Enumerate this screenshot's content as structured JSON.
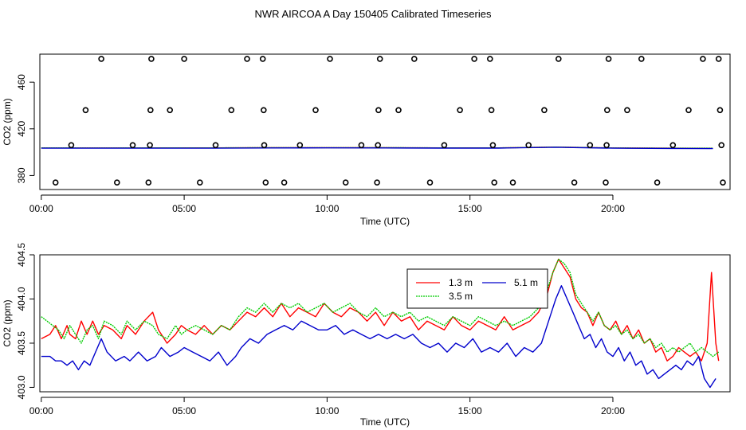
{
  "title": "NWR AIRCOA A  Day 150405  Calibrated Timeseries",
  "chart_data": [
    {
      "type": "scatter",
      "xlabel": "Time (UTC)",
      "ylabel": "CO2 (ppm)",
      "xlim": [
        -0.05,
        24.1
      ],
      "ylim": [
        368,
        484
      ],
      "xticks": [
        0,
        5,
        10,
        15,
        20
      ],
      "xtick_labels": [
        "00:00",
        "05:00",
        "10:00",
        "15:00",
        "20:00"
      ],
      "yticks": [
        380,
        420,
        460
      ],
      "ytick_labels": [
        "380",
        "420",
        "460"
      ],
      "grid": false,
      "points": [
        [
          0.5,
          374
        ],
        [
          1.05,
          406
        ],
        [
          1.55,
          436
        ],
        [
          2.1,
          480
        ],
        [
          2.65,
          374
        ],
        [
          3.2,
          406
        ],
        [
          3.75,
          374
        ],
        [
          3.8,
          406
        ],
        [
          3.82,
          436
        ],
        [
          3.85,
          480
        ],
        [
          4.5,
          436
        ],
        [
          5.0,
          480
        ],
        [
          5.55,
          374
        ],
        [
          6.1,
          406
        ],
        [
          6.65,
          436
        ],
        [
          7.2,
          480
        ],
        [
          7.75,
          480
        ],
        [
          7.78,
          436
        ],
        [
          7.8,
          406
        ],
        [
          7.85,
          374
        ],
        [
          8.5,
          374
        ],
        [
          9.05,
          406
        ],
        [
          9.6,
          436
        ],
        [
          10.1,
          480
        ],
        [
          10.65,
          374
        ],
        [
          11.2,
          406
        ],
        [
          11.75,
          374
        ],
        [
          11.78,
          406
        ],
        [
          11.8,
          436
        ],
        [
          11.85,
          480
        ],
        [
          12.5,
          436
        ],
        [
          13.05,
          480
        ],
        [
          13.6,
          374
        ],
        [
          14.1,
          406
        ],
        [
          14.65,
          436
        ],
        [
          15.15,
          480
        ],
        [
          15.7,
          480
        ],
        [
          15.75,
          436
        ],
        [
          15.8,
          406
        ],
        [
          15.85,
          374
        ],
        [
          16.5,
          374
        ],
        [
          17.05,
          406
        ],
        [
          17.6,
          436
        ],
        [
          18.1,
          480
        ],
        [
          18.65,
          374
        ],
        [
          19.2,
          406
        ],
        [
          19.75,
          374
        ],
        [
          19.78,
          406
        ],
        [
          19.8,
          436
        ],
        [
          19.85,
          480
        ],
        [
          20.5,
          436
        ],
        [
          21.0,
          480
        ],
        [
          21.55,
          374
        ],
        [
          22.1,
          406
        ],
        [
          22.65,
          436
        ],
        [
          23.15,
          480
        ],
        [
          23.7,
          480
        ],
        [
          23.75,
          436
        ],
        [
          23.8,
          406
        ],
        [
          23.85,
          374
        ]
      ],
      "series": [
        {
          "name": "1.3 m",
          "color": "#ff0000",
          "x": [
            0.0,
            2.0,
            4.0,
            6.0,
            8.0,
            10.0,
            12.0,
            14.0,
            16.0,
            18.0,
            20.0,
            22.0,
            23.5
          ],
          "values": [
            403.6,
            403.6,
            403.7,
            403.7,
            403.8,
            403.9,
            403.8,
            403.7,
            403.7,
            404.4,
            403.6,
            403.4,
            403.3
          ]
        },
        {
          "name": "3.5 m",
          "color": "#00cc00",
          "x": [
            0.0,
            2.0,
            4.0,
            6.0,
            8.0,
            10.0,
            12.0,
            14.0,
            16.0,
            18.0,
            20.0,
            22.0,
            23.5
          ],
          "values": [
            403.7,
            403.6,
            403.7,
            403.7,
            403.9,
            403.9,
            403.9,
            403.7,
            403.7,
            404.4,
            403.6,
            403.4,
            403.4
          ]
        },
        {
          "name": "5.1 m",
          "color": "#0000cc",
          "x": [
            0.0,
            2.0,
            4.0,
            6.0,
            8.0,
            10.0,
            12.0,
            14.0,
            16.0,
            18.0,
            20.0,
            22.0,
            23.5
          ],
          "values": [
            403.4,
            403.4,
            403.4,
            403.4,
            403.6,
            403.7,
            403.6,
            403.5,
            403.5,
            404.2,
            403.4,
            403.2,
            403.1
          ]
        }
      ]
    },
    {
      "type": "line",
      "xlabel": "Time (UTC)",
      "ylabel": "CO2 (ppm)",
      "xlim": [
        -0.05,
        24.1
      ],
      "ylim": [
        402.95,
        404.5
      ],
      "xticks": [
        0,
        5,
        10,
        15,
        20
      ],
      "xtick_labels": [
        "00:00",
        "05:00",
        "10:00",
        "15:00",
        "20:00"
      ],
      "yticks": [
        403.0,
        403.5,
        404.0,
        404.5
      ],
      "ytick_labels": [
        "403.0",
        "403.5",
        "404.0",
        "404.5"
      ],
      "grid": false,
      "legend": {
        "placement": "top-center",
        "entries": [
          "1.3 m",
          "5.1 m",
          "3.5 m"
        ]
      },
      "series": [
        {
          "name": "1.3 m",
          "color": "#ff0000",
          "x": [
            0.0,
            0.3,
            0.5,
            0.7,
            0.9,
            1.0,
            1.2,
            1.4,
            1.6,
            1.8,
            2.0,
            2.2,
            2.5,
            2.8,
            3.0,
            3.3,
            3.6,
            3.9,
            4.1,
            4.4,
            4.7,
            4.9,
            5.1,
            5.4,
            5.7,
            6.0,
            6.3,
            6.6,
            6.9,
            7.2,
            7.5,
            7.8,
            8.1,
            8.4,
            8.7,
            9.0,
            9.3,
            9.6,
            9.9,
            10.2,
            10.5,
            10.8,
            11.1,
            11.4,
            11.7,
            12.0,
            12.3,
            12.6,
            12.9,
            13.2,
            13.5,
            13.8,
            14.1,
            14.4,
            14.7,
            15.0,
            15.3,
            15.6,
            15.9,
            16.2,
            16.5,
            16.8,
            17.1,
            17.4,
            17.7,
            17.9,
            18.1,
            18.3,
            18.5,
            18.7,
            18.9,
            19.1,
            19.3,
            19.5,
            19.7,
            19.9,
            20.1,
            20.3,
            20.5,
            20.7,
            20.9,
            21.1,
            21.3,
            21.5,
            21.7,
            21.9,
            22.1,
            22.3,
            22.5,
            22.7,
            22.9,
            23.1,
            23.3,
            23.45,
            23.6,
            23.7
          ],
          "values": [
            403.55,
            403.6,
            403.7,
            403.55,
            403.7,
            403.6,
            403.55,
            403.75,
            403.6,
            403.75,
            403.6,
            403.7,
            403.65,
            403.55,
            403.7,
            403.6,
            403.75,
            403.85,
            403.65,
            403.5,
            403.6,
            403.7,
            403.65,
            403.6,
            403.7,
            403.6,
            403.7,
            403.65,
            403.75,
            403.85,
            403.8,
            403.9,
            403.8,
            403.95,
            403.8,
            403.9,
            403.85,
            403.8,
            403.95,
            403.85,
            403.8,
            403.9,
            403.85,
            403.75,
            403.85,
            403.7,
            403.85,
            403.75,
            403.8,
            403.65,
            403.75,
            403.7,
            403.65,
            403.8,
            403.7,
            403.65,
            403.75,
            403.7,
            403.65,
            403.8,
            403.65,
            403.7,
            403.75,
            403.85,
            404.05,
            404.3,
            404.45,
            404.35,
            404.25,
            404.0,
            403.9,
            403.85,
            403.7,
            403.85,
            403.7,
            403.65,
            403.75,
            403.6,
            403.7,
            403.55,
            403.65,
            403.5,
            403.55,
            403.4,
            403.45,
            403.3,
            403.35,
            403.45,
            403.4,
            403.35,
            403.4,
            403.3,
            403.5,
            404.3,
            403.5,
            403.3
          ]
        },
        {
          "name": "3.5 m",
          "color": "#00cc00",
          "x": [
            0.0,
            0.2,
            0.4,
            0.6,
            0.8,
            1.0,
            1.2,
            1.4,
            1.6,
            1.8,
            2.0,
            2.2,
            2.5,
            2.8,
            3.0,
            3.3,
            3.6,
            3.9,
            4.1,
            4.4,
            4.7,
            4.9,
            5.1,
            5.4,
            5.7,
            6.0,
            6.3,
            6.6,
            6.9,
            7.2,
            7.5,
            7.8,
            8.1,
            8.4,
            8.7,
            9.0,
            9.3,
            9.6,
            9.9,
            10.2,
            10.5,
            10.8,
            11.1,
            11.4,
            11.7,
            12.0,
            12.3,
            12.6,
            12.9,
            13.2,
            13.5,
            13.8,
            14.1,
            14.4,
            14.7,
            15.0,
            15.3,
            15.6,
            15.9,
            16.2,
            16.5,
            16.8,
            17.1,
            17.4,
            17.7,
            17.9,
            18.1,
            18.3,
            18.5,
            18.7,
            18.9,
            19.1,
            19.3,
            19.5,
            19.7,
            19.9,
            20.1,
            20.3,
            20.5,
            20.7,
            20.9,
            21.1,
            21.3,
            21.5,
            21.7,
            21.9,
            22.1,
            22.3,
            22.5,
            22.7,
            22.9,
            23.1,
            23.3,
            23.5,
            23.7
          ],
          "values": [
            403.8,
            403.75,
            403.7,
            403.65,
            403.55,
            403.7,
            403.6,
            403.5,
            403.65,
            403.7,
            403.55,
            403.75,
            403.7,
            403.6,
            403.75,
            403.65,
            403.75,
            403.7,
            403.6,
            403.55,
            403.7,
            403.6,
            403.65,
            403.7,
            403.65,
            403.6,
            403.7,
            403.65,
            403.8,
            403.9,
            403.85,
            403.95,
            403.85,
            403.95,
            403.9,
            403.95,
            403.85,
            403.9,
            403.95,
            403.85,
            403.9,
            403.95,
            403.85,
            403.8,
            403.9,
            403.8,
            403.85,
            403.8,
            403.85,
            403.75,
            403.8,
            403.75,
            403.7,
            403.8,
            403.75,
            403.7,
            403.8,
            403.75,
            403.7,
            403.75,
            403.7,
            403.75,
            403.8,
            403.9,
            404.1,
            404.3,
            404.45,
            404.4,
            404.3,
            404.05,
            403.95,
            403.85,
            403.75,
            403.85,
            403.7,
            403.65,
            403.7,
            403.6,
            403.65,
            403.55,
            403.6,
            403.5,
            403.55,
            403.45,
            403.5,
            403.4,
            403.45,
            403.4,
            403.45,
            403.5,
            403.4,
            403.45,
            403.4,
            403.35,
            403.4
          ]
        },
        {
          "name": "5.1 m",
          "color": "#0000cc",
          "x": [
            0.0,
            0.3,
            0.5,
            0.7,
            0.9,
            1.1,
            1.3,
            1.5,
            1.7,
            1.9,
            2.1,
            2.3,
            2.6,
            2.9,
            3.1,
            3.4,
            3.7,
            4.0,
            4.2,
            4.5,
            4.8,
            5.0,
            5.3,
            5.6,
            5.9,
            6.2,
            6.5,
            6.8,
            7.0,
            7.3,
            7.6,
            7.9,
            8.2,
            8.5,
            8.8,
            9.1,
            9.4,
            9.7,
            10.0,
            10.3,
            10.6,
            10.9,
            11.2,
            11.5,
            11.8,
            12.1,
            12.4,
            12.7,
            13.0,
            13.3,
            13.6,
            13.9,
            14.2,
            14.5,
            14.8,
            15.1,
            15.4,
            15.7,
            16.0,
            16.3,
            16.6,
            16.9,
            17.2,
            17.5,
            17.8,
            18.0,
            18.2,
            18.4,
            18.6,
            18.8,
            19.0,
            19.2,
            19.4,
            19.6,
            19.8,
            20.0,
            20.2,
            20.4,
            20.6,
            20.8,
            21.0,
            21.2,
            21.4,
            21.6,
            21.8,
            22.0,
            22.2,
            22.4,
            22.6,
            22.8,
            23.0,
            23.2,
            23.4,
            23.6
          ],
          "values": [
            403.35,
            403.35,
            403.3,
            403.3,
            403.25,
            403.3,
            403.2,
            403.3,
            403.25,
            403.4,
            403.55,
            403.4,
            403.3,
            403.35,
            403.3,
            403.4,
            403.3,
            403.35,
            403.45,
            403.35,
            403.4,
            403.45,
            403.4,
            403.35,
            403.3,
            403.4,
            403.25,
            403.35,
            403.45,
            403.55,
            403.5,
            403.6,
            403.65,
            403.7,
            403.65,
            403.75,
            403.7,
            403.65,
            403.65,
            403.7,
            403.6,
            403.65,
            403.6,
            403.55,
            403.6,
            403.55,
            403.6,
            403.55,
            403.6,
            403.5,
            403.45,
            403.5,
            403.4,
            403.5,
            403.45,
            403.55,
            403.4,
            403.45,
            403.4,
            403.5,
            403.35,
            403.45,
            403.4,
            403.5,
            403.8,
            404.0,
            404.15,
            404.0,
            403.85,
            403.7,
            403.55,
            403.6,
            403.45,
            403.55,
            403.4,
            403.35,
            403.45,
            403.3,
            403.4,
            403.25,
            403.3,
            403.15,
            403.2,
            403.1,
            403.15,
            403.2,
            403.25,
            403.2,
            403.3,
            403.25,
            403.35,
            403.1,
            403.0,
            403.1
          ]
        }
      ]
    }
  ]
}
